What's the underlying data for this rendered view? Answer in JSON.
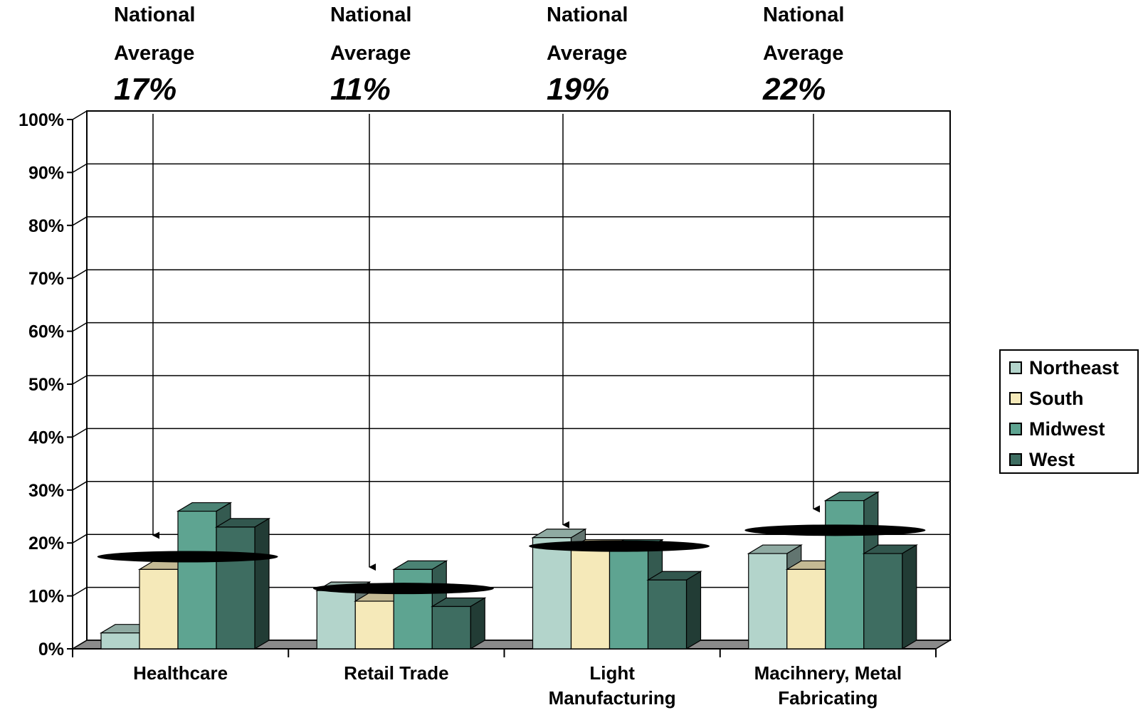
{
  "chart_data": {
    "type": "bar",
    "categories": [
      "Healthcare",
      "Retail Trade",
      "Light Manufacturing",
      "Macihnery, Metal Fabricating"
    ],
    "category_label_lines": [
      [
        "Healthcare"
      ],
      [
        "Retail Trade"
      ],
      [
        "Light",
        "Manufacturing"
      ],
      [
        "Macihnery, Metal",
        "Fabricating"
      ]
    ],
    "series": [
      {
        "name": "Northeast",
        "values": [
          3,
          11,
          21,
          18
        ],
        "color": "#b3d4cb"
      },
      {
        "name": "South",
        "values": [
          15,
          9,
          19,
          15
        ],
        "color": "#f5e9b9"
      },
      {
        "name": "Midwest",
        "values": [
          26,
          15,
          19,
          28
        ],
        "color": "#5ea491"
      },
      {
        "name": "West",
        "values": [
          23,
          8,
          13,
          18
        ],
        "color": "#3e6d61"
      }
    ],
    "national_average": [
      {
        "line1": "National",
        "line2": "Average",
        "value_label": "17%",
        "value": 17
      },
      {
        "line1": "National",
        "line2": "Average",
        "value_label": "11%",
        "value": 11
      },
      {
        "line1": "National",
        "line2": "Average",
        "value_label": "19%",
        "value": 19
      },
      {
        "line1": "National",
        "line2": "Average",
        "value_label": "22%",
        "value": 22
      }
    ],
    "y_ticks": [
      "0%",
      "10%",
      "20%",
      "30%",
      "40%",
      "50%",
      "60%",
      "70%",
      "80%",
      "90%",
      "100%"
    ],
    "ylim": [
      0,
      100
    ],
    "grid": true,
    "legend_position": "right",
    "title": "",
    "xlabel": "",
    "ylabel": ""
  }
}
